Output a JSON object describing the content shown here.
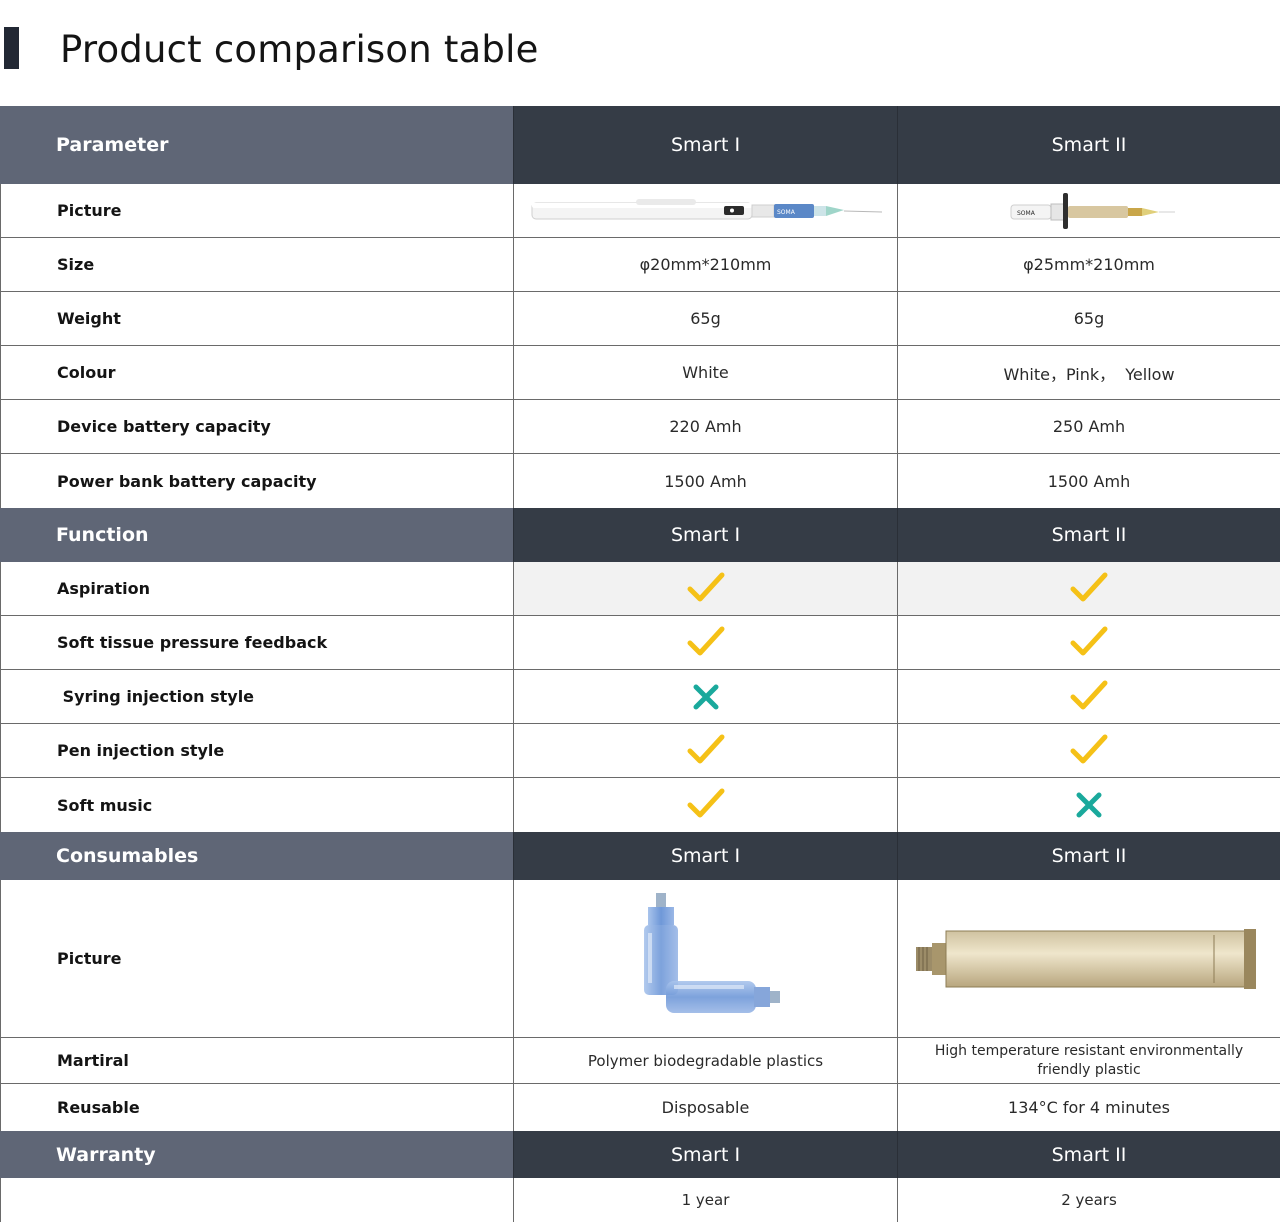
{
  "page_title": "Product comparison table",
  "sections": {
    "parameter": {
      "header": {
        "label": "Parameter",
        "col1": "Smart I",
        "col2": "Smart II"
      },
      "rows": [
        {
          "label": "Picture",
          "col1": "",
          "col2": ""
        },
        {
          "label": "Size",
          "col1": "φ20mm*210mm",
          "col2": "φ25mm*210mm"
        },
        {
          "label": "Weight",
          "col1": "65g",
          "col2": "65g"
        },
        {
          "label": "Colour",
          "col1": "White",
          "col2": "White，Pink，  Yellow"
        },
        {
          "label": "Device battery capacity",
          "col1": "220 Amh",
          "col2": "250 Amh"
        },
        {
          "label": "Power bank battery capacity",
          "col1": "1500 Amh",
          "col2": "1500 Amh"
        }
      ]
    },
    "function": {
      "header": {
        "label": "Function",
        "col1": "Smart I",
        "col2": "Smart II"
      },
      "rows": [
        {
          "label": "Aspiration",
          "col1": "check",
          "col2": "check"
        },
        {
          "label": "Soft tissue pressure feedback",
          "col1": "check",
          "col2": "check"
        },
        {
          "label": " Syring injection style",
          "col1": "cross",
          "col2": "check"
        },
        {
          "label": "Pen injection style",
          "col1": "check",
          "col2": "check"
        },
        {
          "label": "Soft music",
          "col1": "check",
          "col2": "cross"
        }
      ]
    },
    "consumables": {
      "header": {
        "label": "Consumables",
        "col1": "Smart I",
        "col2": "Smart II"
      },
      "rows": [
        {
          "label": "Picture",
          "col1": "",
          "col2": ""
        },
        {
          "label": "Martiral",
          "col1": "Polymer biodegradable plastics",
          "col2": "High temperature resistant environmentally friendly plastic"
        },
        {
          "label": "Reusable",
          "col1": "Disposable",
          "col2": "134°C for 4 minutes"
        }
      ]
    },
    "warranty": {
      "header": {
        "label": "Warranty",
        "col1": "Smart I",
        "col2": "Smart II"
      },
      "rows": [
        {
          "label": "",
          "col1": "1 year",
          "col2": "2 years"
        }
      ]
    }
  },
  "colors": {
    "check": "#f5c117",
    "cross": "#1aa99c",
    "header_dark": "#353c46",
    "header_label": "#5f6676"
  },
  "icons": {
    "check": "checkmark-icon",
    "cross": "cross-icon"
  },
  "device_brand_text": "SOMA"
}
